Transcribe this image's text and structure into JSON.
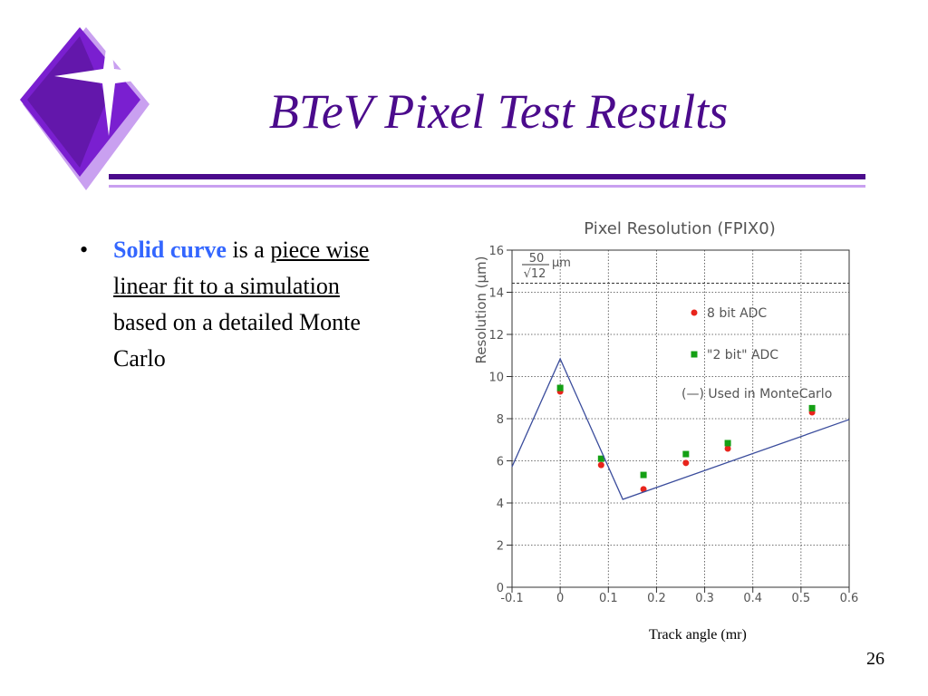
{
  "slide": {
    "title": "BTeV Pixel Test Results",
    "bullet": {
      "segments": [
        {
          "text": "Solid curve",
          "bold": true,
          "color": "#3366ff"
        },
        {
          "text": " is a "
        },
        {
          "text": "piece wise linear fit to a simulation",
          "underline": true
        },
        {
          "text": " based on a detailed Monte Carlo"
        }
      ]
    },
    "x_caption": "Track angle (mr)",
    "page_number": "26"
  },
  "chart_data": {
    "type": "scatter",
    "title": "Pixel Resolution (FPIX0)",
    "y_label": "Resolution (μm)",
    "xlim": [
      -0.1,
      0.6
    ],
    "xticks": [
      -0.1,
      0,
      0.1,
      0.2,
      0.3,
      0.4,
      0.5,
      0.6
    ],
    "ylim": [
      0,
      16
    ],
    "yticks": [
      0,
      2,
      4,
      6,
      8,
      10,
      12,
      14,
      16
    ],
    "grid": true,
    "reference_line": {
      "value": 14.43,
      "numerator": "50",
      "denominator": "√12",
      "unit": "μm"
    },
    "series": [
      {
        "name": "8 bit ADC",
        "color": "#e8241c",
        "marker": "circle",
        "x": [
          0,
          0.085,
          0.173,
          0.261,
          0.348,
          0.523
        ],
        "values": [
          9.29,
          5.8,
          4.65,
          5.9,
          6.58,
          8.3
        ]
      },
      {
        "name": "\"2 bit\" ADC",
        "color": "#14a014",
        "marker": "square",
        "x": [
          0,
          0.085,
          0.173,
          0.261,
          0.348,
          0.523
        ],
        "values": [
          9.46,
          6.1,
          5.33,
          6.32,
          6.84,
          8.5
        ]
      },
      {
        "name": "(—) Used in MonteCarlo",
        "color": "#3a4c9c",
        "marker": "line",
        "x": [
          -0.1,
          0,
          0.13,
          0.6
        ],
        "values": [
          5.72,
          10.84,
          4.17,
          7.96
        ]
      }
    ]
  }
}
